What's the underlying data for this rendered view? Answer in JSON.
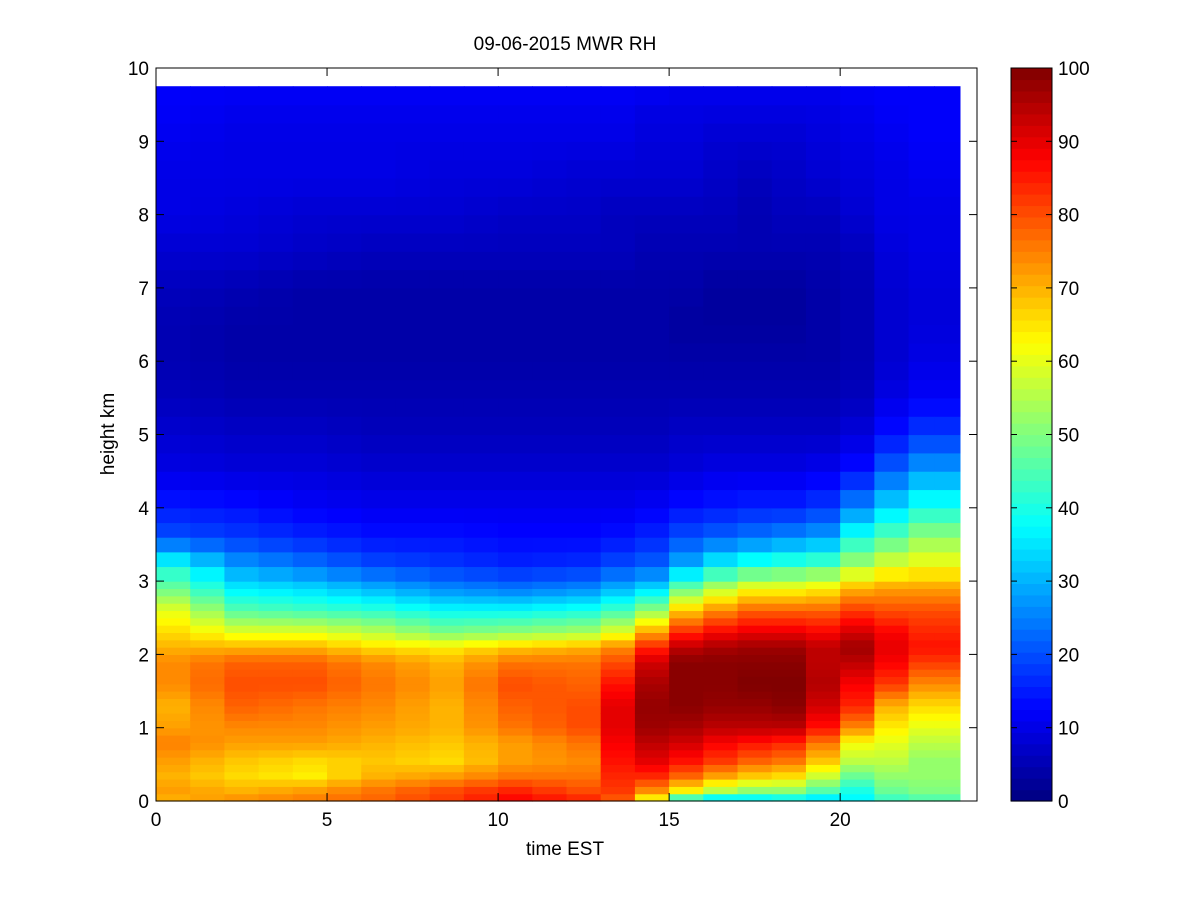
{
  "chart_data": {
    "type": "heatmap",
    "title": "09-06-2015 MWR RH",
    "xlabel": "time EST",
    "ylabel": "height km",
    "xlim": [
      0,
      24
    ],
    "ylim": [
      0,
      10
    ],
    "xticks": [
      0,
      5,
      10,
      15,
      20
    ],
    "yticks": [
      0,
      1,
      2,
      3,
      4,
      5,
      6,
      7,
      8,
      9,
      10
    ],
    "colormap": "jet",
    "colorbar": {
      "clim": [
        0,
        100
      ],
      "ticks": [
        0,
        10,
        20,
        30,
        40,
        50,
        60,
        70,
        80,
        90,
        100
      ]
    },
    "x": [
      0.5,
      1.5,
      2.5,
      3.5,
      4.5,
      5.5,
      6.5,
      7.5,
      8.5,
      9.5,
      10.5,
      11.5,
      12.5,
      13.5,
      14.5,
      15.5,
      16.5,
      17.5,
      18.5,
      19.5,
      20.5,
      21.5,
      22.5,
      23.0
    ],
    "y": [
      0.0,
      0.1,
      0.2,
      0.3,
      0.4,
      0.5,
      0.6,
      0.7,
      0.8,
      0.9,
      1.0,
      1.1,
      1.2,
      1.3,
      1.4,
      1.5,
      1.6,
      1.7,
      1.8,
      1.9,
      2.0,
      2.1,
      2.2,
      2.3,
      2.4,
      2.5,
      2.6,
      2.7,
      2.8,
      2.9,
      3.0,
      3.2,
      3.4,
      3.6,
      3.8,
      4.0,
      4.25,
      4.5,
      4.75,
      5.0,
      5.25,
      5.5,
      5.75,
      6.0,
      6.25,
      6.5,
      6.75,
      7.0,
      7.25,
      7.5,
      7.75,
      8.0,
      8.25,
      8.5,
      8.75,
      9.0,
      9.25,
      9.5,
      9.75
    ],
    "profile_keys": {
      "heights_km": [
        0.0,
        0.15,
        0.35,
        0.55,
        0.8,
        1.0,
        1.3,
        1.6,
        1.9,
        2.1,
        2.3,
        2.6,
        2.9,
        3.2,
        3.6,
        4.0,
        4.5,
        5.0,
        5.5,
        6.0,
        6.5,
        7.0,
        7.5,
        8.0,
        8.5,
        9.0,
        9.5,
        9.75
      ],
      "times_h": [
        0.5,
        2.5,
        4.5,
        6.5,
        8.5,
        10.5,
        12.5,
        13.5,
        14.5,
        15.5,
        16.5,
        17.5,
        18.5,
        19.5,
        20.5,
        21.5,
        22.5,
        23.0
      ],
      "rh_percent": [
        [
          70,
          72,
          70,
          72,
          75,
          72,
          70,
          74,
          74,
          70,
          66,
          60,
          48,
          40,
          20,
          15,
          10,
          8,
          6,
          5,
          5,
          6,
          8,
          10,
          10,
          11,
          12,
          12
        ],
        [
          74,
          70,
          66,
          68,
          72,
          74,
          78,
          80,
          78,
          70,
          60,
          46,
          36,
          28,
          18,
          14,
          9,
          7,
          5,
          4,
          4,
          5,
          8,
          9,
          10,
          10,
          11,
          12
        ],
        [
          76,
          72,
          64,
          66,
          72,
          74,
          76,
          80,
          78,
          70,
          60,
          44,
          34,
          24,
          16,
          12,
          9,
          7,
          5,
          4,
          4,
          4,
          7,
          8,
          10,
          10,
          11,
          12
        ],
        [
          78,
          76,
          70,
          68,
          70,
          72,
          74,
          76,
          74,
          66,
          56,
          42,
          30,
          20,
          14,
          11,
          8,
          6,
          5,
          4,
          4,
          4,
          6,
          8,
          10,
          10,
          11,
          12
        ],
        [
          82,
          80,
          72,
          66,
          68,
          70,
          70,
          72,
          70,
          64,
          50,
          38,
          26,
          18,
          14,
          11,
          8,
          6,
          5,
          4,
          4,
          4,
          6,
          8,
          9,
          10,
          11,
          12
        ],
        [
          88,
          84,
          76,
          72,
          72,
          76,
          78,
          80,
          76,
          68,
          52,
          38,
          24,
          16,
          13,
          11,
          8,
          6,
          5,
          4,
          4,
          4,
          6,
          7,
          9,
          10,
          11,
          12
        ],
        [
          85,
          80,
          76,
          74,
          76,
          80,
          80,
          78,
          76,
          70,
          54,
          40,
          26,
          17,
          13,
          11,
          8,
          6,
          5,
          4,
          4,
          4,
          6,
          7,
          8,
          10,
          11,
          12
        ],
        [
          78,
          82,
          84,
          86,
          88,
          90,
          90,
          86,
          80,
          74,
          60,
          44,
          30,
          20,
          14,
          11,
          8,
          6,
          5,
          4,
          4,
          4,
          6,
          6,
          8,
          10,
          11,
          12
        ],
        [
          60,
          74,
          84,
          90,
          94,
          97,
          98,
          96,
          92,
          84,
          72,
          52,
          34,
          22,
          16,
          12,
          8,
          6,
          5,
          4,
          4,
          4,
          5,
          6,
          8,
          9,
          10,
          12
        ],
        [
          36,
          64,
          78,
          86,
          92,
          96,
          99,
          99,
          99,
          94,
          84,
          68,
          48,
          30,
          20,
          14,
          9,
          7,
          5,
          4,
          3,
          4,
          5,
          6,
          8,
          9,
          10,
          11
        ],
        [
          30,
          56,
          72,
          82,
          88,
          94,
          98,
          99,
          99,
          96,
          88,
          74,
          56,
          38,
          22,
          15,
          10,
          7,
          5,
          4,
          3,
          3,
          5,
          6,
          7,
          8,
          10,
          11
        ],
        [
          32,
          52,
          68,
          78,
          86,
          94,
          98,
          100,
          99,
          97,
          90,
          78,
          62,
          42,
          24,
          16,
          10,
          7,
          5,
          4,
          3,
          3,
          5,
          5,
          6,
          8,
          10,
          11
        ],
        [
          34,
          52,
          66,
          76,
          84,
          94,
          99,
          100,
          99,
          97,
          90,
          78,
          62,
          44,
          26,
          16,
          10,
          7,
          5,
          4,
          3,
          3,
          5,
          6,
          7,
          8,
          10,
          11
        ],
        [
          32,
          46,
          58,
          68,
          76,
          86,
          92,
          95,
          94,
          94,
          88,
          78,
          64,
          46,
          28,
          18,
          11,
          7,
          5,
          4,
          4,
          4,
          5,
          6,
          8,
          9,
          10,
          11
        ],
        [
          36,
          40,
          48,
          56,
          62,
          74,
          84,
          88,
          94,
          97,
          92,
          82,
          70,
          54,
          40,
          26,
          14,
          9,
          6,
          5,
          5,
          5,
          6,
          8,
          9,
          10,
          11,
          12
        ],
        [
          42,
          48,
          52,
          56,
          60,
          64,
          70,
          82,
          88,
          90,
          88,
          80,
          72,
          60,
          46,
          34,
          22,
          14,
          10,
          8,
          8,
          8,
          9,
          10,
          10,
          11,
          12,
          12
        ],
        [
          44,
          50,
          52,
          52,
          56,
          60,
          66,
          74,
          82,
          86,
          84,
          80,
          72,
          62,
          52,
          40,
          28,
          18,
          12,
          10,
          9,
          9,
          10,
          10,
          11,
          12,
          12,
          12
        ],
        [
          44,
          50,
          52,
          52,
          56,
          60,
          66,
          74,
          82,
          86,
          84,
          80,
          72,
          62,
          52,
          40,
          28,
          18,
          12,
          10,
          9,
          9,
          10,
          10,
          11,
          12,
          12,
          12
        ]
      ]
    }
  }
}
